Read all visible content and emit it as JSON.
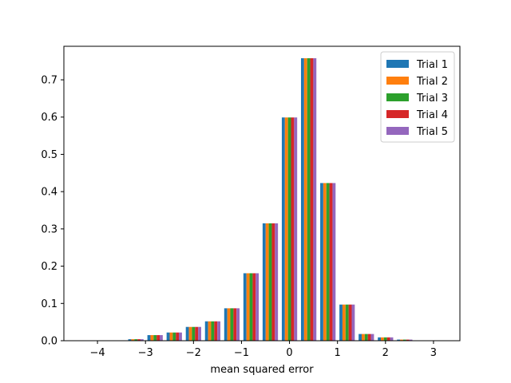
{
  "chart_data": {
    "type": "bar",
    "title": "",
    "xlabel": "mean squared error",
    "ylabel": "",
    "xlim": [
      -4.7,
      3.55
    ],
    "ylim": [
      0,
      0.79
    ],
    "xticks": [
      -4,
      -3,
      -2,
      -1,
      0,
      1,
      2,
      3
    ],
    "yticks": [
      0.0,
      0.1,
      0.2,
      0.3,
      0.4,
      0.5,
      0.6,
      0.7
    ],
    "bin_edges": [
      -4.6,
      -4.2,
      -3.8,
      -3.4,
      -3.0,
      -2.6,
      -2.2,
      -1.8,
      -1.4,
      -1.0,
      -0.6,
      -0.2,
      0.2,
      0.6,
      1.0,
      1.4,
      1.8,
      2.2,
      2.6,
      3.0,
      3.4
    ],
    "legend_position": "top-right",
    "grid": false,
    "series": [
      {
        "name": "Trial 1",
        "color": "#1f77b4",
        "values": [
          0.0005,
          0.0005,
          0.001,
          0.004,
          0.015,
          0.022,
          0.037,
          0.052,
          0.087,
          0.181,
          0.315,
          0.599,
          0.758,
          0.423,
          0.097,
          0.018,
          0.009,
          0.003,
          0.0005,
          0.0005
        ]
      },
      {
        "name": "Trial 2",
        "color": "#ff7f0e",
        "values": [
          0.0005,
          0.0005,
          0.001,
          0.004,
          0.015,
          0.022,
          0.037,
          0.052,
          0.087,
          0.181,
          0.315,
          0.599,
          0.758,
          0.423,
          0.097,
          0.018,
          0.009,
          0.003,
          0.0005,
          0.0005
        ]
      },
      {
        "name": "Trial 3",
        "color": "#2ca02c",
        "values": [
          0.0005,
          0.0005,
          0.001,
          0.004,
          0.015,
          0.022,
          0.037,
          0.052,
          0.087,
          0.181,
          0.315,
          0.599,
          0.758,
          0.423,
          0.097,
          0.018,
          0.009,
          0.003,
          0.0005,
          0.0005
        ]
      },
      {
        "name": "Trial 4",
        "color": "#d62728",
        "values": [
          0.0005,
          0.0005,
          0.001,
          0.004,
          0.015,
          0.022,
          0.037,
          0.052,
          0.087,
          0.181,
          0.315,
          0.599,
          0.758,
          0.423,
          0.097,
          0.018,
          0.009,
          0.003,
          0.0005,
          0.0005
        ]
      },
      {
        "name": "Trial 5",
        "color": "#9467bd",
        "values": [
          0.0005,
          0.0005,
          0.001,
          0.004,
          0.015,
          0.022,
          0.037,
          0.052,
          0.087,
          0.181,
          0.315,
          0.599,
          0.758,
          0.423,
          0.097,
          0.018,
          0.009,
          0.003,
          0.0005,
          0.0005
        ]
      }
    ]
  }
}
